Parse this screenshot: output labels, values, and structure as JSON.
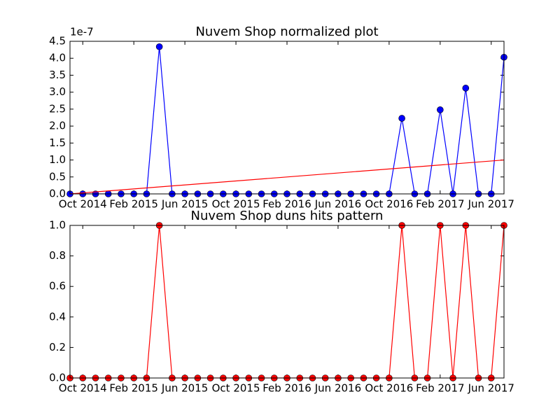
{
  "chart_data": [
    {
      "type": "line",
      "title": "Nuvem Shop normalized plot",
      "y_offset_label": "1e-7",
      "x": [
        "2014-09",
        "2014-10",
        "2014-11",
        "2014-12",
        "2015-01",
        "2015-02",
        "2015-03",
        "2015-04",
        "2015-05",
        "2015-06",
        "2015-07",
        "2015-08",
        "2015-09",
        "2015-10",
        "2015-11",
        "2015-12",
        "2016-01",
        "2016-02",
        "2016-03",
        "2016-04",
        "2016-05",
        "2016-06",
        "2016-07",
        "2016-08",
        "2016-09",
        "2016-10",
        "2016-11",
        "2016-12",
        "2017-01",
        "2017-02",
        "2017-03",
        "2017-04",
        "2017-05",
        "2017-06",
        "2017-07"
      ],
      "series": [
        {
          "color": "#0000ff",
          "marker": true,
          "values": [
            0,
            0,
            0,
            0,
            0,
            0,
            0,
            4.34,
            0,
            0,
            0,
            0,
            0,
            0,
            0,
            0,
            0,
            0,
            0,
            0,
            0,
            0,
            0,
            0,
            0,
            0,
            2.23,
            0,
            0,
            2.48,
            0,
            3.12,
            0,
            0,
            4.03
          ]
        },
        {
          "color": "#ff0000",
          "marker": false,
          "x": [
            "2014-09",
            "2017-07"
          ],
          "values": [
            0,
            1.0
          ]
        }
      ],
      "xlim": [
        "2014-09",
        "2017-07"
      ],
      "xticks": [
        {
          "value": "2014-10",
          "label": "Oct 2014"
        },
        {
          "value": "2015-02",
          "label": "Feb 2015"
        },
        {
          "value": "2015-06",
          "label": "Jun 2015"
        },
        {
          "value": "2015-10",
          "label": "Oct 2015"
        },
        {
          "value": "2016-02",
          "label": "Feb 2016"
        },
        {
          "value": "2016-06",
          "label": "Jun 2016"
        },
        {
          "value": "2016-10",
          "label": "Oct 2016"
        },
        {
          "value": "2017-02",
          "label": "Feb 2017"
        },
        {
          "value": "2017-06",
          "label": "Jun 2017"
        }
      ],
      "ylim": [
        0,
        4.5
      ],
      "yticks": [
        {
          "value": 0,
          "label": "0.0"
        },
        0.5,
        {
          "value": 1,
          "label": "1.0"
        },
        1.5,
        {
          "value": 2,
          "label": "2.0"
        },
        2.5,
        {
          "value": 3,
          "label": "3.0"
        },
        3.5,
        {
          "value": 4,
          "label": "4.0"
        },
        4.5
      ]
    },
    {
      "type": "line",
      "title": "Nuvem Shop duns hits pattern",
      "x": [
        "2014-09",
        "2014-10",
        "2014-11",
        "2014-12",
        "2015-01",
        "2015-02",
        "2015-03",
        "2015-04",
        "2015-05",
        "2015-06",
        "2015-07",
        "2015-08",
        "2015-09",
        "2015-10",
        "2015-11",
        "2015-12",
        "2016-01",
        "2016-02",
        "2016-03",
        "2016-04",
        "2016-05",
        "2016-06",
        "2016-07",
        "2016-08",
        "2016-09",
        "2016-10",
        "2016-11",
        "2016-12",
        "2017-01",
        "2017-02",
        "2017-03",
        "2017-04",
        "2017-05",
        "2017-06",
        "2017-07"
      ],
      "series": [
        {
          "color": "#ff0000",
          "marker": true,
          "values": [
            0,
            0,
            0,
            0,
            0,
            0,
            0,
            1,
            0,
            0,
            0,
            0,
            0,
            0,
            0,
            0,
            0,
            0,
            0,
            0,
            0,
            0,
            0,
            0,
            0,
            0,
            1,
            0,
            0,
            1,
            0,
            1,
            0,
            0,
            1
          ]
        }
      ],
      "xlim": [
        "2014-09",
        "2017-07"
      ],
      "xticks": [
        {
          "value": "2014-10",
          "label": "Oct 2014"
        },
        {
          "value": "2015-02",
          "label": "Feb 2015"
        },
        {
          "value": "2015-06",
          "label": "Jun 2015"
        },
        {
          "value": "2015-10",
          "label": "Oct 2015"
        },
        {
          "value": "2016-02",
          "label": "Feb 2016"
        },
        {
          "value": "2016-06",
          "label": "Jun 2016"
        },
        {
          "value": "2016-10",
          "label": "Oct 2016"
        },
        {
          "value": "2017-02",
          "label": "Feb 2017"
        },
        {
          "value": "2017-06",
          "label": "Jun 2017"
        }
      ],
      "ylim": [
        0,
        1
      ],
      "yticks": [
        {
          "value": 0,
          "label": "0.0"
        },
        0.2,
        0.4,
        0.6,
        0.8,
        {
          "value": 1,
          "label": "1.0"
        }
      ]
    }
  ]
}
